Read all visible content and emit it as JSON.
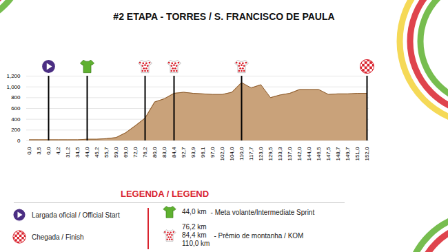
{
  "chart_data": {
    "type": "area",
    "title": "#2 ETAPA - TORRES / S. FRANCISCO DE PAULA",
    "categories": [
      "0,0",
      "3,5",
      "0,0",
      "4,2",
      "31,2",
      "34,5",
      "44,0",
      "45,2",
      "55,7",
      "59,0",
      "69,0",
      "72,0",
      "76,2",
      "80,0",
      "83,0",
      "84,4",
      "92,7",
      "93,9",
      "96,1",
      "97,0",
      "102,0",
      "104,0",
      "110,0",
      "117,7",
      "123,0",
      "129,5",
      "133,3",
      "137,0",
      "142,0",
      "144,0",
      "146,5",
      "147,5",
      "148,7",
      "149,7",
      "151,0",
      "152,0"
    ],
    "values": [
      20,
      20,
      20,
      20,
      20,
      20,
      30,
      30,
      40,
      60,
      150,
      280,
      420,
      720,
      780,
      880,
      900,
      880,
      870,
      860,
      860,
      900,
      1080,
      980,
      1040,
      800,
      850,
      880,
      950,
      950,
      950,
      860,
      870,
      870,
      880,
      880
    ],
    "color": "#c9a27a",
    "ylim": [
      0,
      1200
    ],
    "yticks": [
      0,
      200,
      400,
      600,
      800,
      1000,
      1200
    ],
    "grid": true,
    "legend_title": "LEGENDA / LEGEND",
    "markers": [
      {
        "marker": "start",
        "label": "Largada oficial / Official Start",
        "positions": [
          2
        ],
        "color": "#4b2e83"
      },
      {
        "marker": "finish",
        "label": "Chegada / Finish",
        "positions": [
          35
        ],
        "color": "#d9232e"
      },
      {
        "marker": "sprint",
        "km": [
          "44,0 km"
        ],
        "label": "- Meta volante/Intermediate Sprint",
        "positions": [
          6
        ],
        "color": "#5fb130"
      },
      {
        "marker": "kom",
        "km": [
          "76,2 km",
          "84,4 km",
          "110,0 km"
        ],
        "label": "- Prêmio de montanha / KOM",
        "positions": [
          12,
          15,
          22
        ],
        "color": "#d9232e"
      }
    ]
  }
}
